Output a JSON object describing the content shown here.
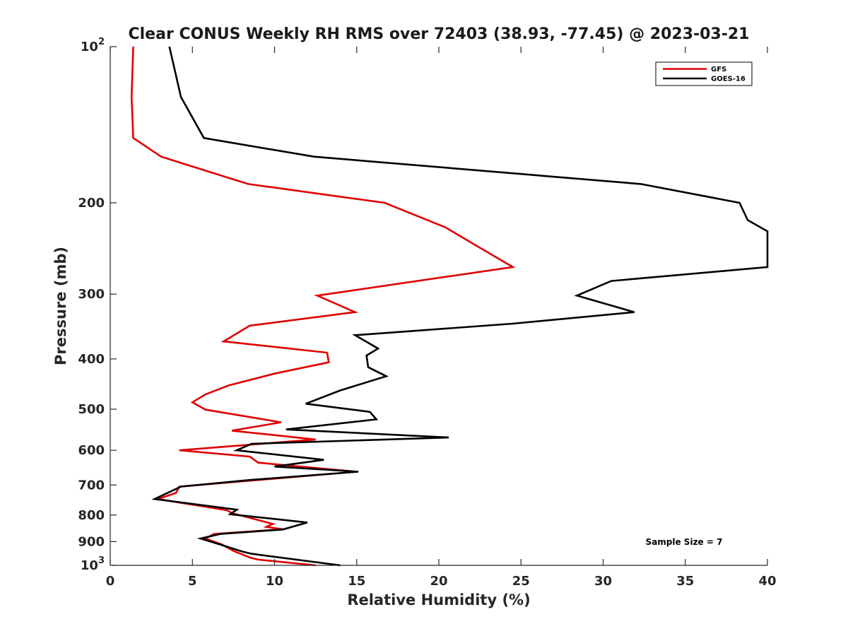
{
  "chart_data": {
    "type": "line",
    "title": "Clear CONUS Weekly RH RMS over 72403 (38.93, -77.45) @ 2023-03-21",
    "xlabel": "Relative Humidity (%)",
    "ylabel": "Pressure (mb)",
    "xlim": [
      0,
      40
    ],
    "ylim": [
      100,
      1000
    ],
    "y_scale": "log",
    "y_reversed": true,
    "grid": false,
    "legend_position": "top-right",
    "x_ticks": [
      0,
      5,
      10,
      15,
      20,
      25,
      30,
      35,
      40
    ],
    "x_tick_labels": [
      "0",
      "5",
      "10",
      "15",
      "20",
      "25",
      "30",
      "35",
      "40"
    ],
    "y_ticks": [
      100,
      200,
      300,
      400,
      500,
      600,
      700,
      800,
      900,
      1000
    ],
    "y_tick_labels": [
      "10^2",
      "200",
      "300",
      "400",
      "500",
      "600",
      "700",
      "800",
      "900",
      "10^3"
    ],
    "annotation": "Sample Size = 7",
    "series": [
      {
        "name": "GFS",
        "color": "#e00000",
        "points": [
          [
            1.4,
            100
          ],
          [
            1.3,
            125
          ],
          [
            1.4,
            150
          ],
          [
            3.1,
            163
          ],
          [
            8.4,
            184
          ],
          [
            16.7,
            200
          ],
          [
            20.4,
            223
          ],
          [
            22.0,
            239
          ],
          [
            24.5,
            266
          ],
          [
            12.6,
            302
          ],
          [
            14.9,
            325
          ],
          [
            8.5,
            345
          ],
          [
            6.9,
            370
          ],
          [
            13.2,
            389
          ],
          [
            13.3,
            406
          ],
          [
            10.0,
            427
          ],
          [
            7.2,
            450
          ],
          [
            5.8,
            468
          ],
          [
            5.0,
            485
          ],
          [
            5.8,
            501
          ],
          [
            10.4,
            530
          ],
          [
            7.4,
            550
          ],
          [
            12.5,
            572
          ],
          [
            4.2,
            600
          ],
          [
            8.5,
            617
          ],
          [
            9.0,
            634
          ],
          [
            15.0,
            660
          ],
          [
            4.2,
            705
          ],
          [
            4.0,
            725
          ],
          [
            2.9,
            745
          ],
          [
            7.1,
            783
          ],
          [
            7.4,
            793
          ],
          [
            9.9,
            832
          ],
          [
            9.5,
            843
          ],
          [
            10.5,
            852
          ],
          [
            6.3,
            870
          ],
          [
            5.8,
            888
          ],
          [
            6.8,
            912
          ],
          [
            7.5,
            938
          ],
          [
            8.5,
            966
          ],
          [
            9.0,
            975
          ],
          [
            12.5,
            1000
          ]
        ]
      },
      {
        "name": "GOES-16",
        "color": "#000000",
        "points": [
          [
            3.6,
            100
          ],
          [
            4.3,
            125
          ],
          [
            5.7,
            150
          ],
          [
            12.4,
            163
          ],
          [
            32.3,
            184
          ],
          [
            38.3,
            200
          ],
          [
            38.8,
            216
          ],
          [
            40.0,
            227
          ],
          [
            40.0,
            266
          ],
          [
            30.5,
            283
          ],
          [
            28.4,
            302
          ],
          [
            31.9,
            325
          ],
          [
            24.5,
            342
          ],
          [
            14.9,
            360
          ],
          [
            16.3,
            382
          ],
          [
            15.6,
            394
          ],
          [
            15.7,
            415
          ],
          [
            16.8,
            432
          ],
          [
            14.0,
            460
          ],
          [
            11.9,
            488
          ],
          [
            15.8,
            506
          ],
          [
            16.2,
            523
          ],
          [
            10.7,
            547
          ],
          [
            20.6,
            567
          ],
          [
            8.6,
            583
          ],
          [
            7.7,
            600
          ],
          [
            13.0,
            626
          ],
          [
            10.0,
            645
          ],
          [
            15.1,
            660
          ],
          [
            8.4,
            685
          ],
          [
            4.3,
            705
          ],
          [
            2.7,
            745
          ],
          [
            7.7,
            781
          ],
          [
            7.3,
            797
          ],
          [
            12.0,
            827
          ],
          [
            10.5,
            853
          ],
          [
            6.7,
            870
          ],
          [
            5.5,
            888
          ],
          [
            6.7,
            912
          ],
          [
            8.0,
            940
          ],
          [
            8.6,
            950
          ],
          [
            14.0,
            1000
          ]
        ]
      }
    ]
  }
}
